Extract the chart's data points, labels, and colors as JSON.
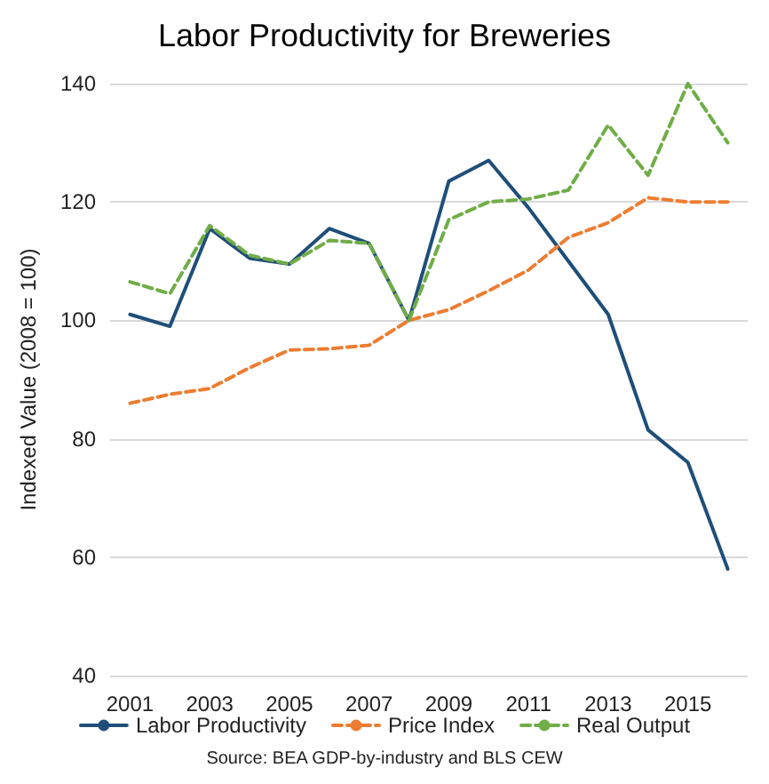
{
  "chart_data": {
    "type": "line",
    "title": "Labor Productivity for Breweries",
    "ylabel": "Indexed Value (2008 = 100)",
    "categories": [
      "2001",
      null,
      "2003",
      null,
      "2005",
      null,
      "2007",
      null,
      "2009",
      null,
      "2011",
      null,
      "2013",
      null,
      "2015",
      null
    ],
    "series": [
      {
        "name": "Labor Productivity",
        "color": "#1f4e79",
        "line_style": "solid",
        "values": [
          101,
          99,
          115.5,
          110.5,
          109.5,
          115.5,
          113,
          100,
          123.5,
          127,
          119,
          110,
          101,
          81.5,
          76,
          58
        ]
      },
      {
        "name": "Price Index",
        "color": "#ed7d31",
        "line_style": "dashed",
        "values": [
          86,
          87.5,
          88.5,
          92,
          95,
          95.2,
          95.8,
          100,
          101.8,
          105,
          108.5,
          114,
          116.5,
          120.7,
          120,
          120
        ]
      },
      {
        "name": "Real Output",
        "color": "#70ad47",
        "line_style": "dashed",
        "values": [
          106.5,
          104.5,
          116,
          111,
          109.5,
          113.5,
          113,
          100,
          117,
          120,
          120.5,
          122,
          133,
          124.5,
          140,
          130
        ]
      }
    ],
    "ylim": [
      40,
      140
    ],
    "yticks": [
      40,
      60,
      80,
      100,
      120,
      140
    ],
    "grid": "y",
    "legend": "bottom",
    "marker": "none",
    "annotations": [
      "Source: BEA GDP-by-industry and BLS CEW"
    ]
  }
}
